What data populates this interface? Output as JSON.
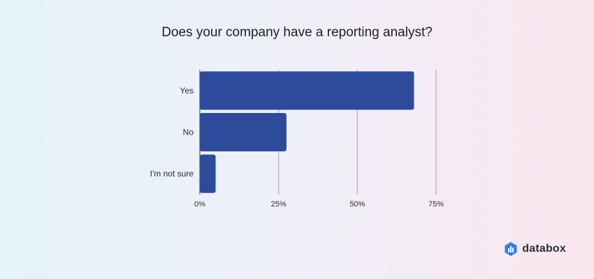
{
  "chart_data": {
    "type": "bar",
    "orientation": "horizontal",
    "title": "Does your company have a reporting analyst?",
    "categories": [
      "Yes",
      "No",
      "I'm not sure"
    ],
    "values": [
      68,
      27.5,
      5
    ],
    "xlim": [
      0,
      75
    ],
    "xticks": [
      0,
      25,
      50,
      75
    ],
    "xtick_labels": [
      "0%",
      "25%",
      "50%",
      "75%"
    ],
    "bar_color": "#2e4a9a",
    "grid": true
  },
  "brand": {
    "name": "databox",
    "icon": "databox-logo-icon"
  }
}
